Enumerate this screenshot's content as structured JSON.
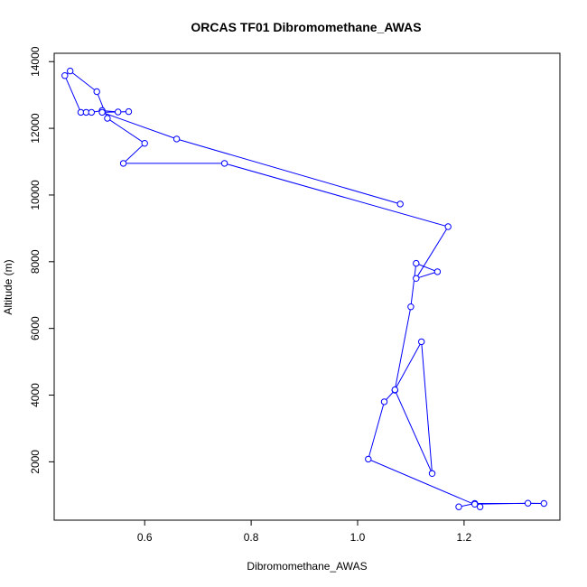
{
  "chart_data": {
    "type": "line",
    "title": "ORCAS TF01 Dibromomethane_AWAS",
    "xlabel": "Dibromomethane_AWAS",
    "ylabel": "Altitude (m)",
    "xlim": [
      0.43,
      1.38
    ],
    "ylim": [
      250,
      14250
    ],
    "xticks": [
      0.6,
      0.8,
      1.0,
      1.2
    ],
    "xtick_labels": [
      "0.6",
      "0.8",
      "1.0",
      "1.2"
    ],
    "yticks": [
      2000,
      4000,
      6000,
      8000,
      10000,
      12000,
      14000
    ],
    "ytick_labels": [
      "2000",
      "4000",
      "6000",
      "8000",
      "10000",
      "12000",
      "14000"
    ],
    "grid": false,
    "legend": "none",
    "series_color": "#0000ff",
    "marker": "open-circle",
    "series": [
      {
        "x": [
          1.19,
          1.22,
          1.35,
          1.32,
          1.22,
          1.23,
          1.02,
          1.05,
          1.07,
          1.14,
          1.12,
          1.07,
          1.1,
          1.11,
          1.15,
          1.11,
          1.17,
          0.75,
          0.56,
          0.6,
          0.53,
          0.51,
          0.46,
          0.45,
          0.48,
          0.49,
          0.5,
          0.52,
          0.52,
          0.55,
          0.57,
          0.52,
          0.66,
          1.08
        ],
        "y": [
          650,
          750,
          750,
          760,
          730,
          650,
          2080,
          3800,
          4150,
          1650,
          5600,
          4160,
          6650,
          7950,
          7700,
          7500,
          9050,
          10950,
          10950,
          11550,
          12300,
          13100,
          13720,
          13580,
          12480,
          12480,
          12480,
          12530,
          12530,
          12490,
          12500,
          12480,
          11680,
          9730
        ]
      }
    ]
  }
}
